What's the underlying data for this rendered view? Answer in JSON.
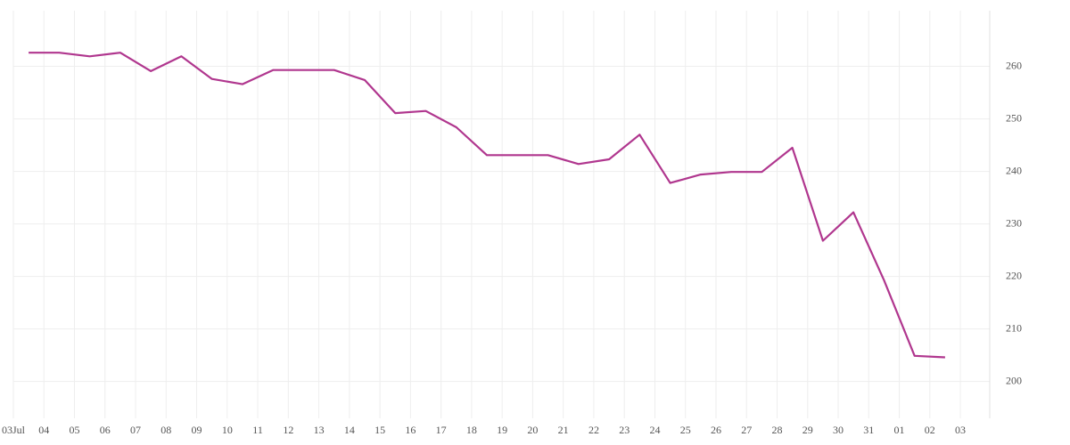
{
  "chart_data": {
    "type": "line",
    "categories": [
      "03Jul",
      "04",
      "05",
      "06",
      "07",
      "08",
      "09",
      "10",
      "11",
      "12",
      "13",
      "14",
      "15",
      "16",
      "17",
      "18",
      "19",
      "20",
      "21",
      "22",
      "23",
      "24",
      "25",
      "26",
      "27",
      "28",
      "29",
      "30",
      "31",
      "01",
      "02",
      "03"
    ],
    "series": [
      {
        "color": "#b0368e",
        "values": [
          262.6,
          262.6,
          261.9,
          262.6,
          259.1,
          261.9,
          257.6,
          256.6,
          259.3,
          259.3,
          259.3,
          257.4,
          251.1,
          251.5,
          248.4,
          243.1,
          243.1,
          243.1,
          241.4,
          242.3,
          247.0,
          237.8,
          239.4,
          239.9,
          239.9,
          244.5,
          226.8,
          232.2,
          219.3,
          204.9,
          204.6,
          null
        ]
      }
    ],
    "ylim": [
      193,
      270.6
    ],
    "yticks": [
      200,
      210,
      220,
      230,
      240,
      250,
      260
    ],
    "grid": true
  }
}
